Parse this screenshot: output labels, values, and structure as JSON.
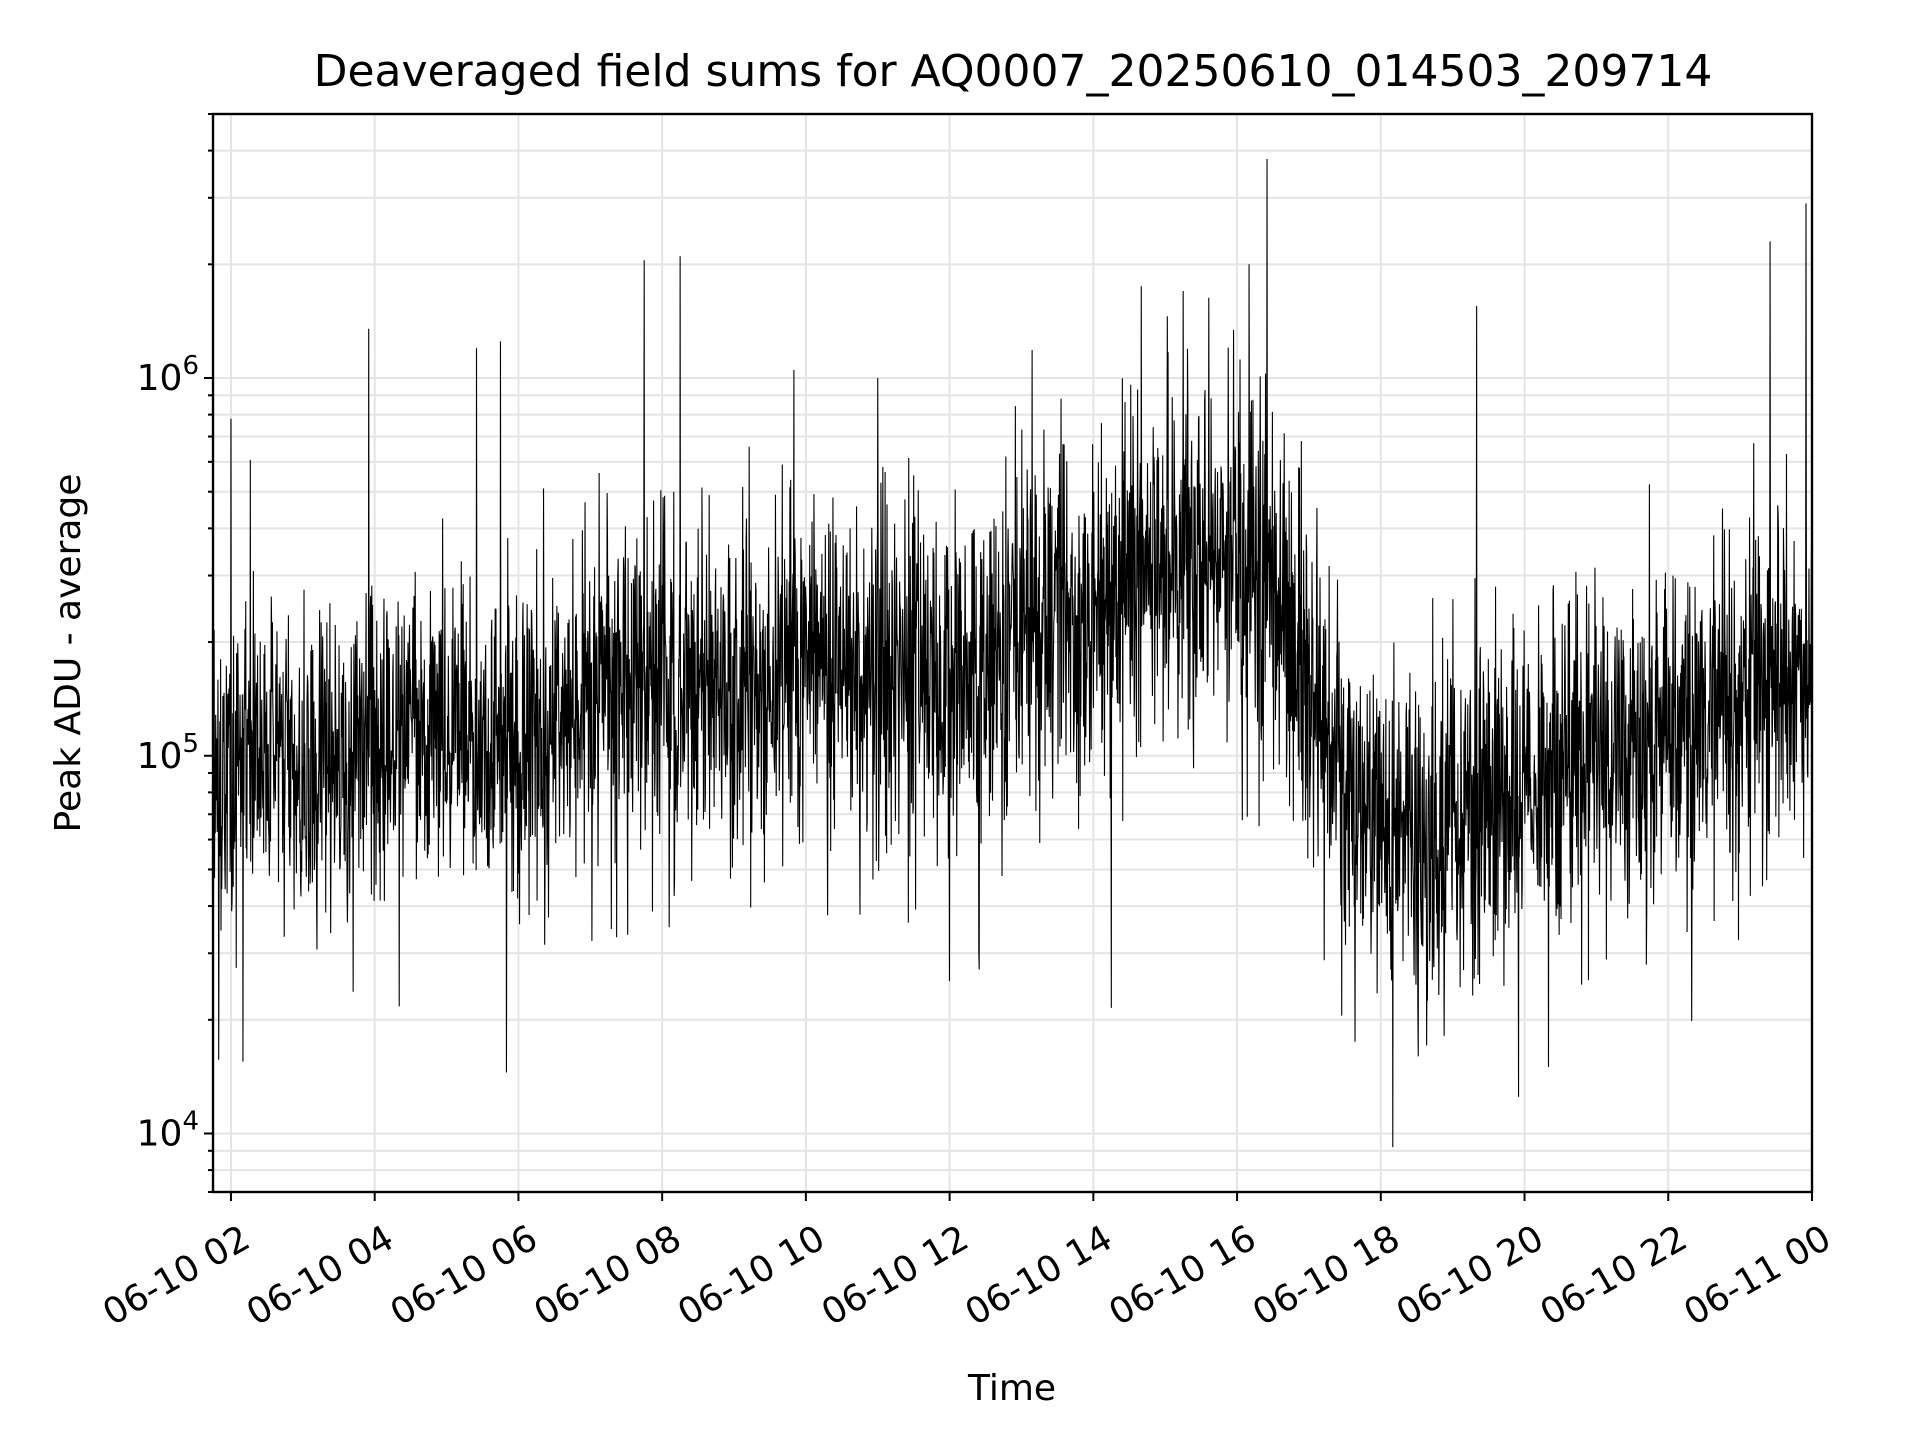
{
  "chart_data": {
    "type": "line",
    "title": "Deaveraged field sums for AQ0007_20250610_014503_209714",
    "xlabel": "Time",
    "ylabel": "Peak ADU - average",
    "y_scale": "log",
    "grid": true,
    "x_range": [
      "2025-06-10 01:45",
      "2025-06-11 00:00"
    ],
    "ylim": [
      7000,
      5000000
    ],
    "x_ticks": [
      {
        "value": "2025-06-10 02:00",
        "label": "06-10 02"
      },
      {
        "value": "2025-06-10 04:00",
        "label": "06-10 04"
      },
      {
        "value": "2025-06-10 06:00",
        "label": "06-10 06"
      },
      {
        "value": "2025-06-10 08:00",
        "label": "06-10 08"
      },
      {
        "value": "2025-06-10 10:00",
        "label": "06-10 10"
      },
      {
        "value": "2025-06-10 12:00",
        "label": "06-10 12"
      },
      {
        "value": "2025-06-10 14:00",
        "label": "06-10 14"
      },
      {
        "value": "2025-06-10 16:00",
        "label": "06-10 16"
      },
      {
        "value": "2025-06-10 18:00",
        "label": "06-10 18"
      },
      {
        "value": "2025-06-10 20:00",
        "label": "06-10 20"
      },
      {
        "value": "2025-06-10 22:00",
        "label": "06-10 22"
      },
      {
        "value": "2025-06-11 00:00",
        "label": "06-11 00"
      }
    ],
    "y_ticks": [
      {
        "value": 10000,
        "base": "10",
        "exp": "4"
      },
      {
        "value": 100000,
        "base": "10",
        "exp": "5"
      },
      {
        "value": 1000000,
        "base": "10",
        "exp": "6"
      }
    ],
    "line_color": "#000000",
    "series": [
      {
        "x": [
          "2025-06-10 01:45",
          "2025-06-10 02:00",
          "2025-06-10 02:30",
          "2025-06-10 03:00",
          "2025-06-10 03:30",
          "2025-06-10 04:00",
          "2025-06-10 04:30",
          "2025-06-10 05:00",
          "2025-06-10 05:30",
          "2025-06-10 06:00",
          "2025-06-10 06:30",
          "2025-06-10 07:00",
          "2025-06-10 07:30",
          "2025-06-10 08:00",
          "2025-06-10 08:30",
          "2025-06-10 09:00",
          "2025-06-10 09:30",
          "2025-06-10 10:00",
          "2025-06-10 10:30",
          "2025-06-10 11:00",
          "2025-06-10 11:30",
          "2025-06-10 12:00",
          "2025-06-10 12:30",
          "2025-06-10 13:00",
          "2025-06-10 13:30",
          "2025-06-10 14:00",
          "2025-06-10 14:30",
          "2025-06-10 15:00",
          "2025-06-10 15:30",
          "2025-06-10 16:00",
          "2025-06-10 16:30",
          "2025-06-10 17:00",
          "2025-06-10 17:30",
          "2025-06-10 18:00",
          "2025-06-10 18:30",
          "2025-06-10 19:00",
          "2025-06-10 19:30",
          "2025-06-10 20:00",
          "2025-06-10 20:30",
          "2025-06-10 21:00",
          "2025-06-10 21:30",
          "2025-06-10 22:00",
          "2025-06-10 22:30",
          "2025-06-10 23:00",
          "2025-06-10 23:30",
          "2025-06-11 00:00"
        ],
        "y": [
          85000,
          95000,
          100000,
          95000,
          100000,
          110000,
          115000,
          120000,
          115000,
          110000,
          115000,
          140000,
          170000,
          160000,
          150000,
          140000,
          150000,
          170000,
          180000,
          170000,
          160000,
          150000,
          160000,
          250000,
          270000,
          220000,
          260000,
          320000,
          340000,
          330000,
          300000,
          150000,
          80000,
          65000,
          60000,
          65000,
          70000,
          80000,
          90000,
          100000,
          110000,
          110000,
          120000,
          140000,
          170000,
          190000
        ],
        "spread_low": [
          40000,
          42000,
          45000,
          42000,
          48000,
          50000,
          52000,
          55000,
          50000,
          48000,
          52000,
          60000,
          70000,
          70000,
          65000,
          62000,
          68000,
          75000,
          78000,
          72000,
          70000,
          68000,
          72000,
          100000,
          110000,
          90000,
          110000,
          140000,
          150000,
          140000,
          120000,
          60000,
          35000,
          28000,
          25000,
          28000,
          30000,
          35000,
          40000,
          42000,
          48000,
          48000,
          52000,
          60000,
          75000,
          80000
        ],
        "spread_high": [
          250000,
          230000,
          240000,
          230000,
          250000,
          280000,
          300000,
          320000,
          300000,
          280000,
          300000,
          380000,
          500000,
          450000,
          420000,
          400000,
          420000,
          480000,
          520000,
          470000,
          450000,
          420000,
          460000,
          700000,
          780000,
          620000,
          750000,
          900000,
          950000,
          950000,
          850000,
          400000,
          220000,
          180000,
          160000,
          180000,
          200000,
          230000,
          260000,
          280000,
          300000,
          300000,
          340000,
          400000,
          500000,
          560000
        ],
        "peaks": [
          {
            "x": "2025-06-10 02:00",
            "y": 780000
          },
          {
            "x": "2025-06-10 03:55",
            "y": 1350000
          },
          {
            "x": "2025-06-10 05:25",
            "y": 1200000
          },
          {
            "x": "2025-06-10 05:45",
            "y": 1250000
          },
          {
            "x": "2025-06-10 07:45",
            "y": 2050000
          },
          {
            "x": "2025-06-10 08:15",
            "y": 2100000
          },
          {
            "x": "2025-06-10 09:50",
            "y": 1050000
          },
          {
            "x": "2025-06-10 11:00",
            "y": 1000000
          },
          {
            "x": "2025-06-10 14:40",
            "y": 1750000
          },
          {
            "x": "2025-06-10 15:15",
            "y": 1700000
          },
          {
            "x": "2025-06-10 16:10",
            "y": 2000000
          },
          {
            "x": "2025-06-10 16:25",
            "y": 3800000
          },
          {
            "x": "2025-06-10 19:20",
            "y": 1550000
          },
          {
            "x": "2025-06-10 23:25",
            "y": 2300000
          },
          {
            "x": "2025-06-10 23:55",
            "y": 2900000
          }
        ],
        "troughs": [
          {
            "x": "2025-06-10 02:10",
            "y": 15500
          },
          {
            "x": "2025-06-10 05:50",
            "y": 14500
          },
          {
            "x": "2025-06-10 14:15",
            "y": 21500
          },
          {
            "x": "2025-06-10 18:10",
            "y": 9200
          },
          {
            "x": "2025-06-10 19:55",
            "y": 12500
          },
          {
            "x": "2025-06-10 20:20",
            "y": 15000
          }
        ]
      }
    ]
  }
}
